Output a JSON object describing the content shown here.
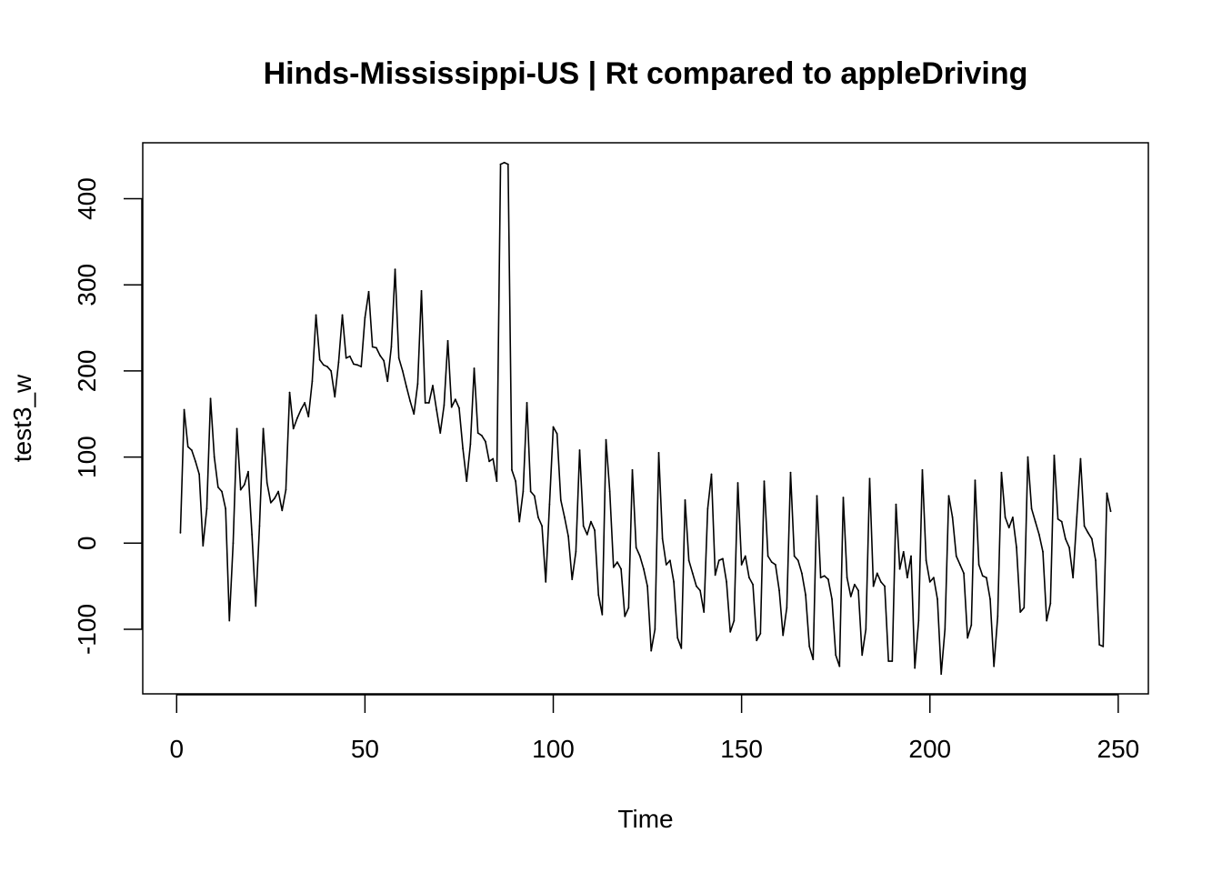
{
  "chart_data": {
    "type": "line",
    "title": "Hinds-Mississippi-US | Rt compared to appleDriving",
    "xlabel": "Time",
    "ylabel": "test3_w",
    "xlim": [
      -9,
      258
    ],
    "ylim": [
      -175,
      465
    ],
    "xticks": [
      0,
      50,
      100,
      150,
      200,
      250
    ],
    "yticks": [
      -100,
      0,
      100,
      200,
      300,
      400
    ],
    "grid": false,
    "legend": "none",
    "line_color": "#000000",
    "series": [
      {
        "x": [
          1,
          2,
          3,
          4,
          5,
          6,
          7,
          8,
          9,
          10,
          11,
          12,
          13,
          14,
          15,
          16,
          17,
          18,
          19,
          20,
          21,
          22,
          23,
          24,
          25,
          26,
          27,
          28,
          29,
          30,
          31,
          32,
          33,
          34,
          35,
          36,
          37,
          38,
          39,
          40,
          41,
          42,
          43,
          44,
          45,
          46,
          47,
          48,
          49,
          50,
          51,
          52,
          53,
          54,
          55,
          56,
          57,
          58,
          59,
          60,
          61,
          62,
          63,
          64,
          65,
          66,
          67,
          68,
          69,
          70,
          71,
          72,
          73,
          74,
          75,
          76,
          77,
          78,
          79,
          80,
          81,
          82,
          83,
          84,
          85,
          86,
          87,
          88,
          89,
          90,
          91,
          92,
          93,
          94,
          95,
          96,
          97,
          98,
          99,
          100,
          101,
          102,
          103,
          104,
          105,
          106,
          107,
          108,
          109,
          110,
          111,
          112,
          113,
          114,
          115,
          116,
          117,
          118,
          119,
          120,
          121,
          122,
          123,
          124,
          125,
          126,
          127,
          128,
          129,
          130,
          131,
          132,
          133,
          134,
          135,
          136,
          137,
          138,
          139,
          140,
          141,
          142,
          143,
          144,
          145,
          146,
          147,
          148,
          149,
          150,
          151,
          152,
          153,
          154,
          155,
          156,
          157,
          158,
          159,
          160,
          161,
          162,
          163,
          164,
          165,
          166,
          167,
          168,
          169,
          170,
          171,
          172,
          173,
          174,
          175,
          176,
          177,
          178,
          179,
          180,
          181,
          182,
          183,
          184,
          185,
          186,
          187,
          188,
          189,
          190,
          191,
          192,
          193,
          194,
          195,
          196,
          197,
          198,
          199,
          200,
          201,
          202,
          203,
          204,
          205,
          206,
          207,
          208,
          209,
          210,
          211,
          212,
          213,
          214,
          215,
          216,
          217,
          218,
          219,
          220,
          221,
          222,
          223,
          224,
          225,
          226,
          227,
          228,
          229,
          230,
          231,
          232,
          233,
          234,
          235,
          236,
          237,
          238,
          239,
          240,
          241,
          242,
          243,
          244,
          245,
          246,
          247,
          248
        ],
        "values": [
          12,
          155,
          112,
          108,
          95,
          80,
          -3,
          40,
          168,
          100,
          65,
          60,
          40,
          -90,
          0,
          133,
          62,
          68,
          83,
          10,
          -73,
          20,
          133,
          70,
          47,
          52,
          60,
          38,
          62,
          175,
          133,
          145,
          155,
          163,
          147,
          188,
          265,
          213,
          207,
          205,
          200,
          170,
          210,
          265,
          215,
          217,
          208,
          207,
          205,
          262,
          292,
          228,
          227,
          218,
          212,
          188,
          228,
          318,
          215,
          200,
          182,
          165,
          150,
          185,
          293,
          163,
          163,
          183,
          155,
          128,
          160,
          235,
          158,
          167,
          157,
          110,
          72,
          115,
          203,
          128,
          125,
          118,
          95,
          98,
          72,
          440,
          442,
          440,
          85,
          72,
          25,
          60,
          163,
          60,
          55,
          30,
          20,
          -45,
          45,
          135,
          127,
          50,
          30,
          8,
          -42,
          -10,
          108,
          20,
          10,
          25,
          15,
          -60,
          -83,
          120,
          60,
          -28,
          -22,
          -30,
          -85,
          -75,
          85,
          -5,
          -15,
          -30,
          -50,
          -125,
          -100,
          105,
          5,
          -25,
          -20,
          -45,
          -110,
          -122,
          50,
          -20,
          -35,
          -50,
          -55,
          -80,
          40,
          80,
          -37,
          -20,
          -18,
          -45,
          -103,
          -90,
          70,
          -25,
          -15,
          -40,
          -48,
          -113,
          -105,
          72,
          -15,
          -22,
          -25,
          -55,
          -107,
          -75,
          82,
          -15,
          -20,
          -35,
          -60,
          -120,
          -135,
          55,
          -40,
          -38,
          -42,
          -65,
          -130,
          -143,
          53,
          -40,
          -62,
          -48,
          -55,
          -130,
          -100,
          75,
          -50,
          -35,
          -45,
          -50,
          -137,
          -137,
          45,
          -30,
          -10,
          -40,
          -15,
          -145,
          -90,
          85,
          -20,
          -45,
          -40,
          -65,
          -152,
          -100,
          55,
          30,
          -15,
          -25,
          -35,
          -110,
          -95,
          73,
          -25,
          -38,
          -40,
          -65,
          -143,
          -85,
          82,
          30,
          18,
          30,
          -5,
          -80,
          -75,
          100,
          40,
          25,
          10,
          -10,
          -90,
          -70,
          102,
          28,
          25,
          5,
          -5,
          -40,
          30,
          98,
          20,
          12,
          5,
          -20,
          -118,
          -120,
          58,
          37
        ]
      }
    ]
  }
}
